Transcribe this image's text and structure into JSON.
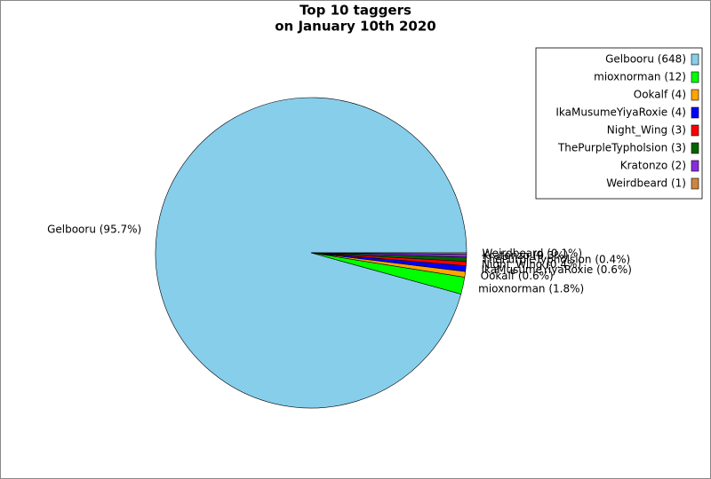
{
  "chart_data": {
    "type": "pie",
    "title": [
      "Top 10 taggers",
      "on January 10th 2020"
    ],
    "categories": [
      "Gelbooru",
      "mioxnorman",
      "Ookalf",
      "IkaMusumeYiyaRoxie",
      "Night_Wing",
      "ThePurpleTypholsion",
      "Kratonzo",
      "Weirdbeard"
    ],
    "values": [
      648,
      12,
      4,
      4,
      3,
      3,
      2,
      1
    ],
    "value_labels": [
      "Gelbooru (95.7%)",
      "mioxnorman (1.8%)",
      "Ookalf (0.6%)",
      "IkaMusumeYiyaRoxie (0.6%)",
      "Night_Wing (0.4%)",
      "ThePurpleTypholsion (0.4%)",
      "Kratonzo (0.3%)",
      "Weirdbeard (0.1%)"
    ],
    "legend_labels": [
      "Gelbooru (648)",
      "mioxnorman (12)",
      "Ookalf (4)",
      "IkaMusumeYiyaRoxie (4)",
      "Night_Wing (3)",
      "ThePurpleTypholsion (3)",
      "Kratonzo (2)",
      "Weirdbeard (1)"
    ],
    "colors": [
      "#87ceeb",
      "#00ff00",
      "#ffa500",
      "#0000ff",
      "#ff0000",
      "#006400",
      "#8a2be2",
      "#cd853f"
    ],
    "legend": "upper right"
  }
}
